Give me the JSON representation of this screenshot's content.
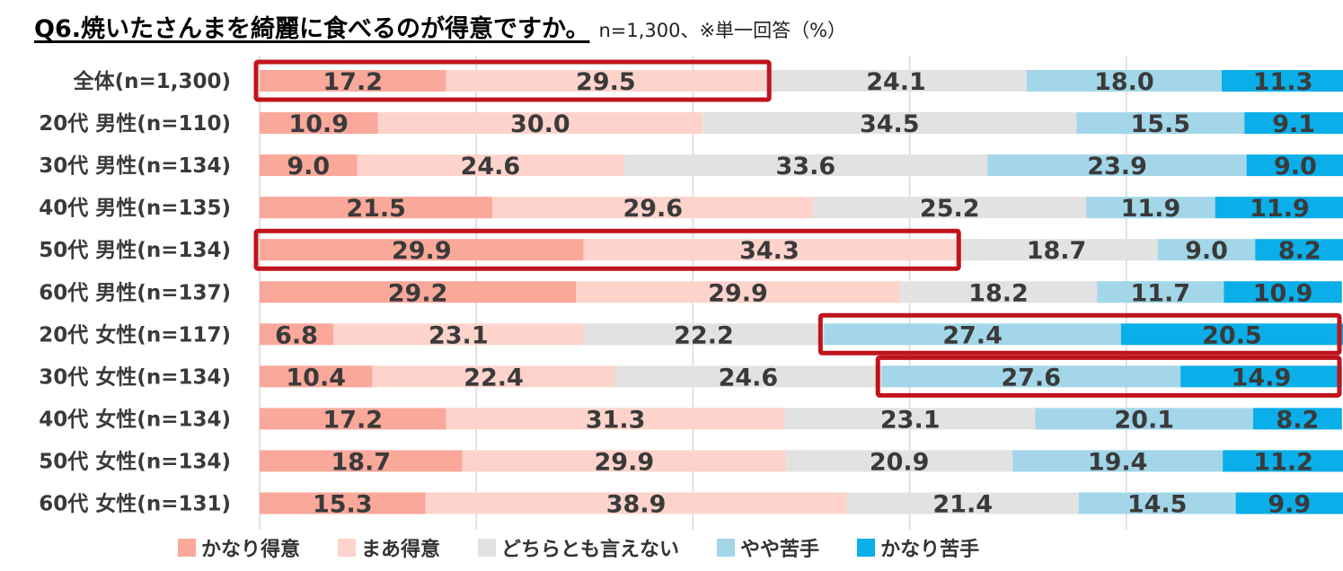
{
  "title": "Q6.焼いたさんまを綺麗に食べるのが得意ですか。",
  "subtitle": "n=1,300、※単一回答（%）",
  "colors": [
    "#f9a89a",
    "#fdd3cb",
    "#e2e2e2",
    "#a2d6e8",
    "#0aaee8"
  ],
  "chart_data": {
    "type": "bar",
    "orientation": "horizontal",
    "stacked": "100%",
    "title": "Q6.焼いたさんまを綺麗に食べるのが得意ですか。",
    "subtitle": "n=1,300、※単一回答（%）",
    "categories": [
      "全体(n=1,300)",
      "20代 男性(n=110)",
      "30代 男性(n=134)",
      "40代 男性(n=135)",
      "50代 男性(n=134)",
      "60代 男性(n=137)",
      "20代 女性(n=117)",
      "30代 女性(n=134)",
      "40代 女性(n=134)",
      "50代 女性(n=134)",
      "60代 女性(n=131)"
    ],
    "series": [
      {
        "name": "かなり得意",
        "values": [
          17.2,
          10.9,
          9.0,
          21.5,
          29.9,
          29.2,
          6.8,
          10.4,
          17.2,
          18.7,
          15.3
        ]
      },
      {
        "name": "まあ得意",
        "values": [
          29.5,
          30.0,
          24.6,
          29.6,
          34.3,
          29.9,
          23.1,
          22.4,
          31.3,
          29.9,
          38.9
        ]
      },
      {
        "name": "どちらとも言えない",
        "values": [
          24.1,
          34.5,
          33.6,
          25.2,
          18.7,
          18.2,
          22.2,
          24.6,
          23.1,
          20.9,
          21.4
        ]
      },
      {
        "name": "やや苦手",
        "values": [
          18.0,
          15.5,
          23.9,
          11.9,
          9.0,
          11.7,
          27.4,
          27.6,
          20.1,
          19.4,
          14.5
        ]
      },
      {
        "name": "かなり苦手",
        "values": [
          11.3,
          9.1,
          9.0,
          11.9,
          8.2,
          10.9,
          20.5,
          14.9,
          8.2,
          11.2,
          9.9
        ]
      }
    ],
    "xlim": [
      0,
      100
    ],
    "gridlines": [
      20,
      40,
      60,
      80
    ],
    "legend_position": "bottom",
    "highlights": [
      {
        "row": 0,
        "series": [
          0,
          1
        ]
      },
      {
        "row": 4,
        "series": [
          0,
          1
        ]
      },
      {
        "row": 6,
        "series": [
          3,
          4
        ]
      },
      {
        "row": 7,
        "series": [
          3,
          4
        ]
      }
    ]
  }
}
